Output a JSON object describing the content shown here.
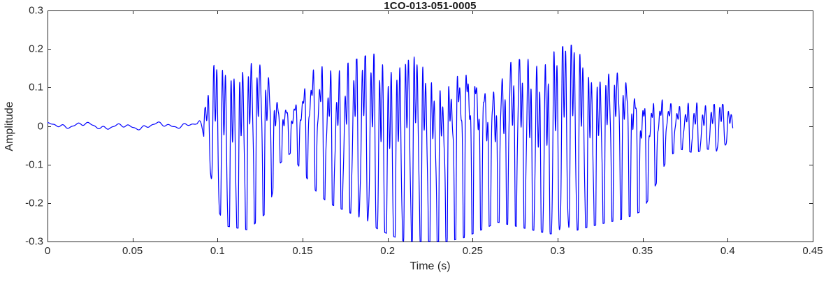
{
  "chart_data": {
    "type": "line",
    "title": "1CO-013-051-0005",
    "xlabel": "Time (s)",
    "ylabel": "Amplitude",
    "xlim": [
      0,
      0.45
    ],
    "ylim": [
      -0.3,
      0.3
    ],
    "grid": false,
    "legend": null,
    "line_color": "#0000FF",
    "axis_color": "#262626",
    "x_ticks": [
      {
        "v": 0,
        "label": "0"
      },
      {
        "v": 0.05,
        "label": "0.05"
      },
      {
        "v": 0.1,
        "label": "0.1"
      },
      {
        "v": 0.15,
        "label": "0.15"
      },
      {
        "v": 0.2,
        "label": "0.2"
      },
      {
        "v": 0.25,
        "label": "0.25"
      },
      {
        "v": 0.3,
        "label": "0.3"
      },
      {
        "v": 0.35,
        "label": "0.35"
      },
      {
        "v": 0.4,
        "label": "0.4"
      },
      {
        "v": 0.45,
        "label": "0.45"
      }
    ],
    "y_ticks": [
      {
        "v": -0.3,
        "label": "-0.3"
      },
      {
        "v": -0.2,
        "label": "-0.2"
      },
      {
        "v": -0.1,
        "label": "-0.1"
      },
      {
        "v": 0,
        "label": "0"
      },
      {
        "v": 0.1,
        "label": "0.1"
      },
      {
        "v": 0.2,
        "label": "0.2"
      },
      {
        "v": 0.3,
        "label": "0.3"
      }
    ],
    "signal": {
      "description": "speech-like waveform: low-level noise until ~0.09 s, voiced bursts 0.095-0.36 s peaking +0.21/-0.30, decaying tail ending ~0.403 s",
      "carrier_hz": 195,
      "start_s": 0,
      "end_s": 0.403,
      "silence_until_s": 0.092,
      "envelope": [
        [
          0.0,
          0.01,
          -0.01
        ],
        [
          0.088,
          0.01,
          -0.01
        ],
        [
          0.093,
          0.05,
          -0.05
        ],
        [
          0.098,
          0.16,
          -0.2
        ],
        [
          0.105,
          0.18,
          -0.26
        ],
        [
          0.118,
          0.18,
          -0.27
        ],
        [
          0.13,
          0.16,
          -0.22
        ],
        [
          0.136,
          0.09,
          -0.1
        ],
        [
          0.143,
          0.07,
          -0.07
        ],
        [
          0.15,
          0.1,
          -0.12
        ],
        [
          0.158,
          0.16,
          -0.17
        ],
        [
          0.165,
          0.17,
          -0.2
        ],
        [
          0.175,
          0.16,
          -0.22
        ],
        [
          0.185,
          0.18,
          -0.24
        ],
        [
          0.195,
          0.19,
          -0.27
        ],
        [
          0.205,
          0.17,
          -0.29
        ],
        [
          0.215,
          0.18,
          -0.31
        ],
        [
          0.225,
          0.17,
          -0.31
        ],
        [
          0.235,
          0.16,
          -0.3
        ],
        [
          0.245,
          0.17,
          -0.29
        ],
        [
          0.255,
          0.18,
          -0.27
        ],
        [
          0.265,
          0.16,
          -0.25
        ],
        [
          0.275,
          0.17,
          -0.26
        ],
        [
          0.285,
          0.18,
          -0.27
        ],
        [
          0.295,
          0.19,
          -0.28
        ],
        [
          0.305,
          0.21,
          -0.28
        ],
        [
          0.312,
          0.21,
          -0.27
        ],
        [
          0.32,
          0.18,
          -0.26
        ],
        [
          0.33,
          0.17,
          -0.25
        ],
        [
          0.34,
          0.15,
          -0.24
        ],
        [
          0.35,
          0.13,
          -0.22
        ],
        [
          0.358,
          0.09,
          -0.15
        ],
        [
          0.365,
          0.06,
          -0.08
        ],
        [
          0.372,
          0.05,
          -0.06
        ],
        [
          0.38,
          0.07,
          -0.07
        ],
        [
          0.388,
          0.05,
          -0.06
        ],
        [
          0.395,
          0.06,
          -0.07
        ],
        [
          0.4,
          0.05,
          -0.05
        ],
        [
          0.403,
          0.02,
          -0.02
        ]
      ]
    }
  }
}
